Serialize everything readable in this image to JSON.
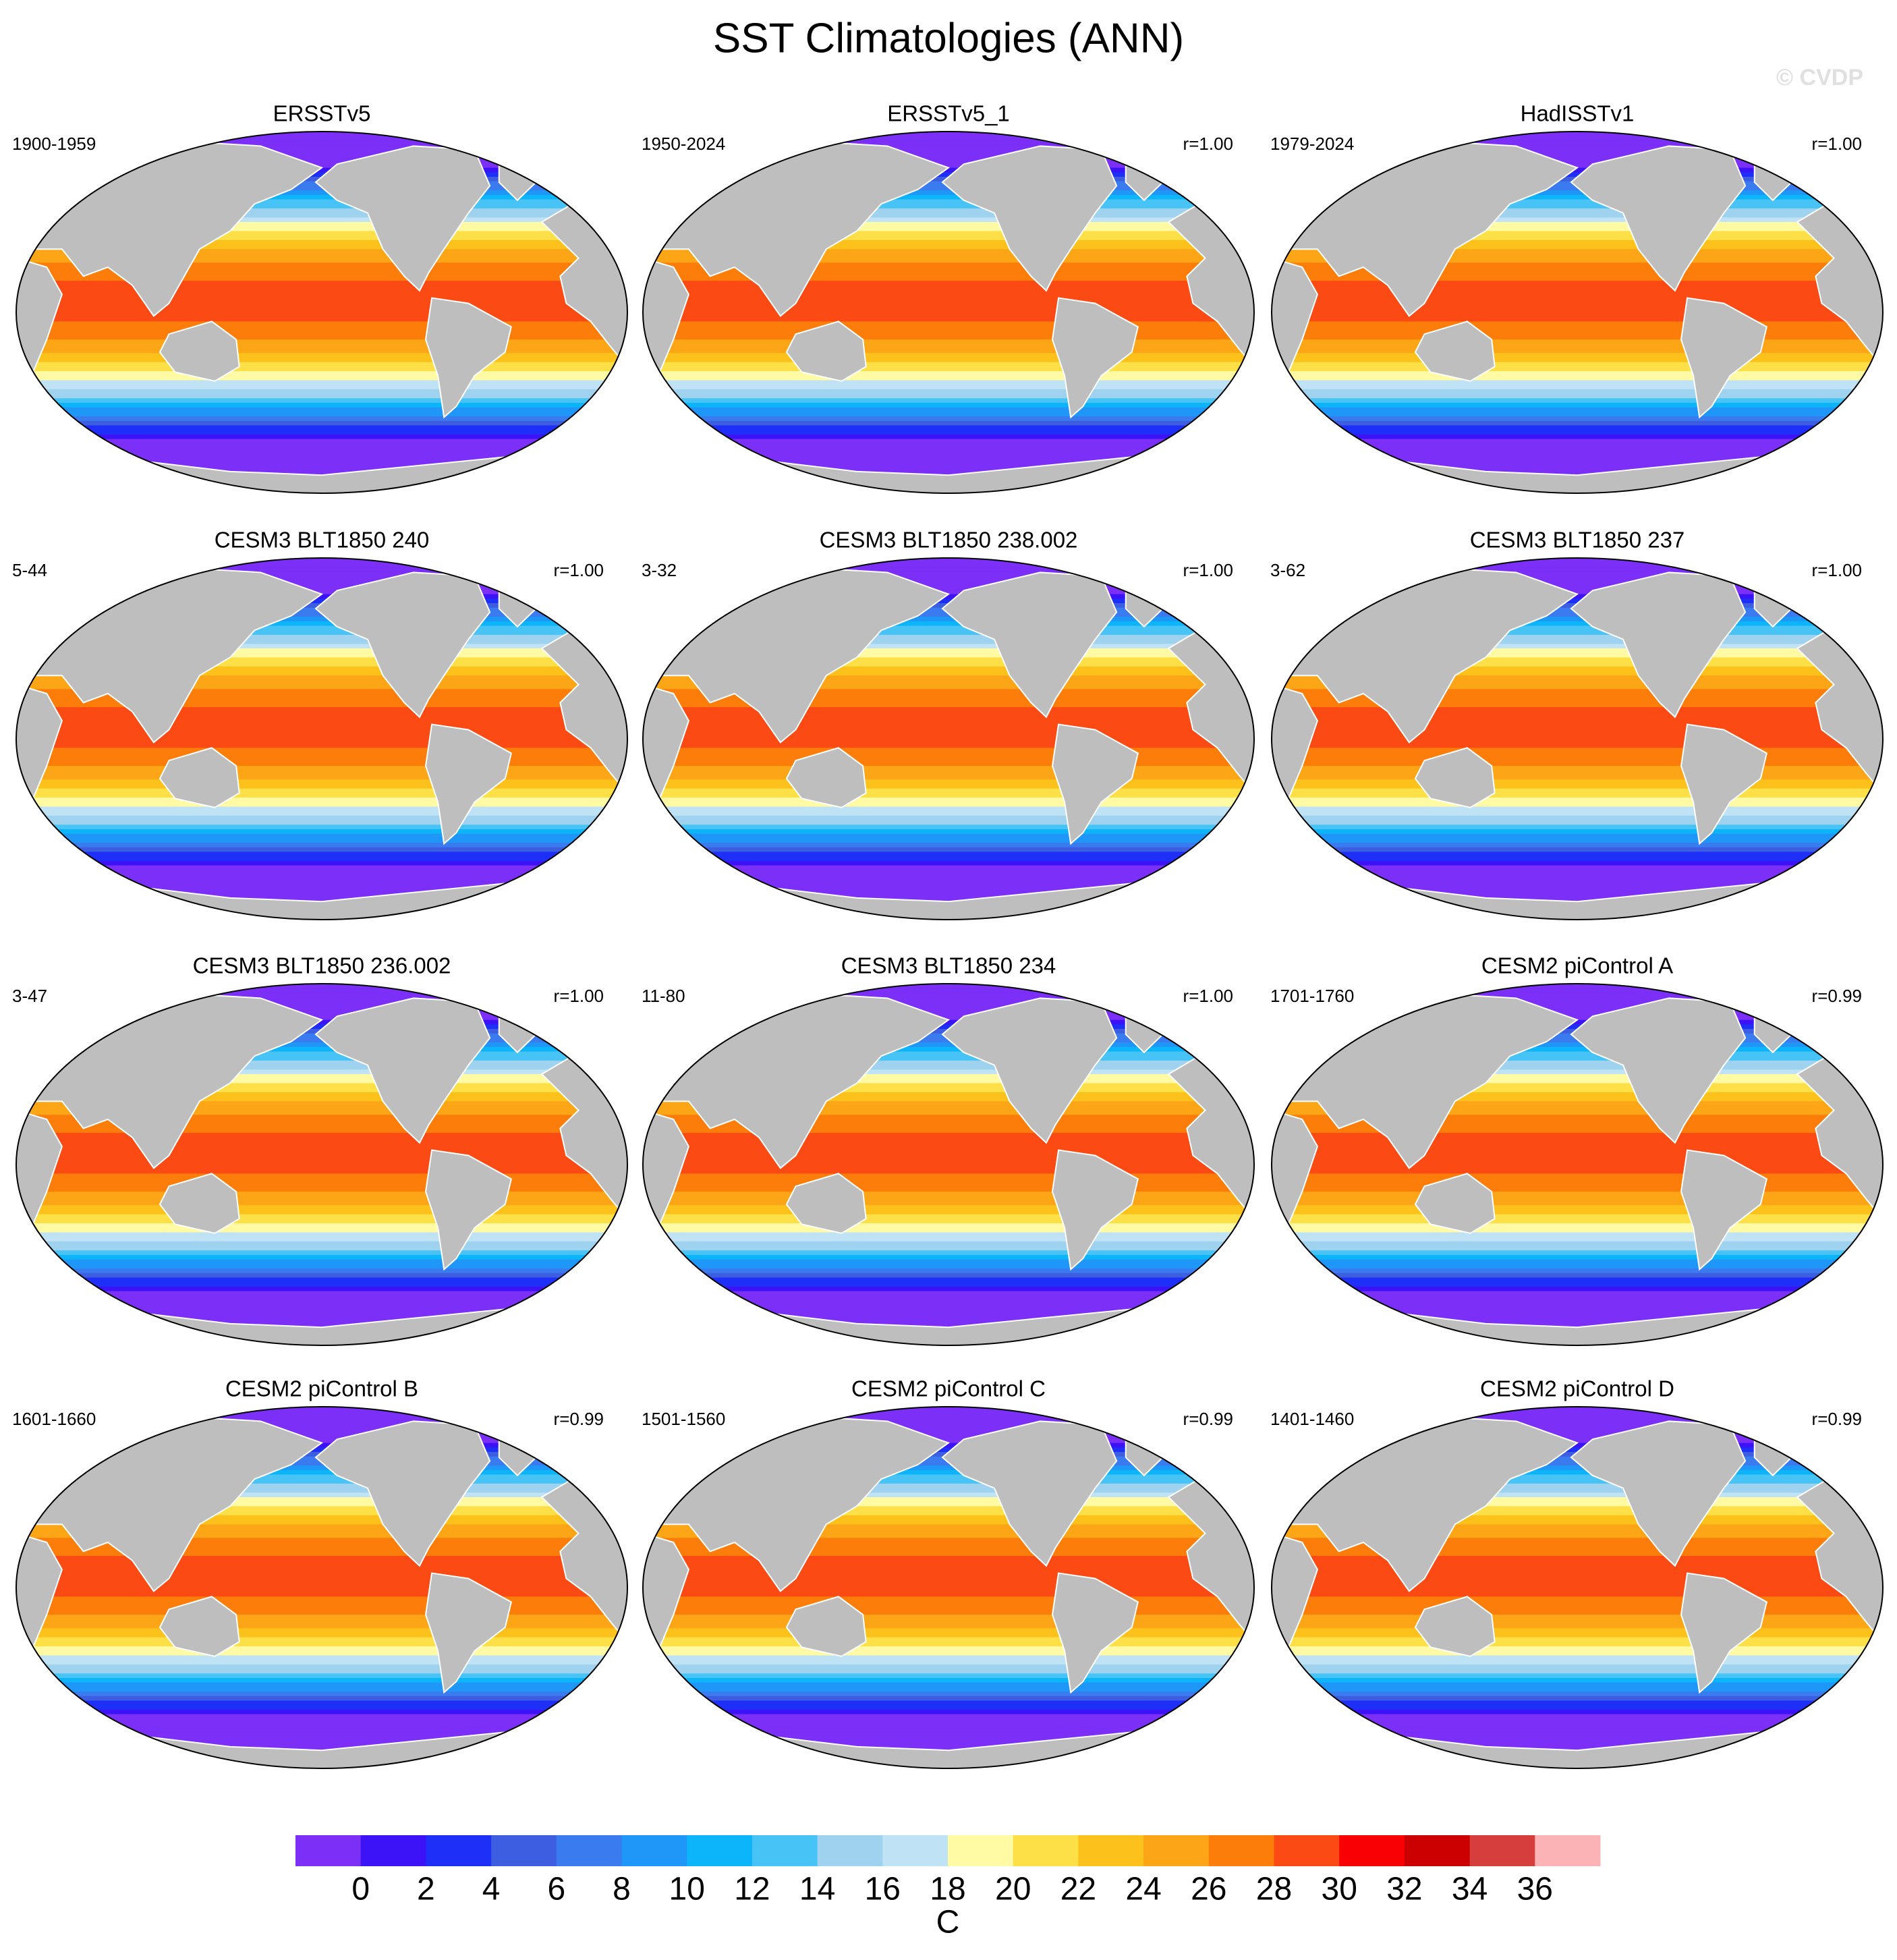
{
  "title": "SST Climatologies (ANN)",
  "watermark": "© CVDP",
  "panels": [
    {
      "title": "ERSSTv5",
      "period": "1900-1959"
    },
    {
      "title": "ERSSTv5_1",
      "period": "1950-2024",
      "corr": "r=1.00"
    },
    {
      "title": "HadISSTv1",
      "period": "1979-2024",
      "corr": "r=1.00"
    },
    {
      "title": "CESM3 BLT1850 240",
      "period": "5-44",
      "corr": "r=1.00"
    },
    {
      "title": "CESM3 BLT1850 238.002",
      "period": "3-32",
      "corr": "r=1.00"
    },
    {
      "title": "CESM3 BLT1850 237",
      "period": "3-62",
      "corr": "r=1.00"
    },
    {
      "title": "CESM3 BLT1850 236.002",
      "period": "3-47",
      "corr": "r=1.00"
    },
    {
      "title": "CESM3 BLT1850 234",
      "period": "11-80",
      "corr": "r=1.00"
    },
    {
      "title": "CESM2 piControl A",
      "period": "1701-1760",
      "corr": "r=0.99"
    },
    {
      "title": "CESM2 piControl B",
      "period": "1601-1660",
      "corr": "r=0.99"
    },
    {
      "title": "CESM2 piControl C",
      "period": "1501-1560",
      "corr": "r=0.99"
    },
    {
      "title": "CESM2 piControl D",
      "period": "1401-1460",
      "corr": "r=0.99"
    }
  ],
  "colorbar": {
    "label": "C",
    "ticks": [
      0,
      2,
      4,
      6,
      8,
      10,
      12,
      14,
      16,
      18,
      20,
      22,
      24,
      26,
      28,
      30,
      32,
      34,
      36
    ],
    "colors": [
      "#7b2ff7",
      "#3c13f7",
      "#1e2ff8",
      "#3d5ee0",
      "#3a7bf0",
      "#1f97f9",
      "#0cb4f9",
      "#48c3f5",
      "#9fd2ef",
      "#bfe3f5",
      "#fffaa3",
      "#fde047",
      "#fcc21b",
      "#fca617",
      "#fc7d0a",
      "#fb4a13",
      "#f90005",
      "#cc0000",
      "#d63d3d",
      "#fcb3b5"
    ]
  }
}
